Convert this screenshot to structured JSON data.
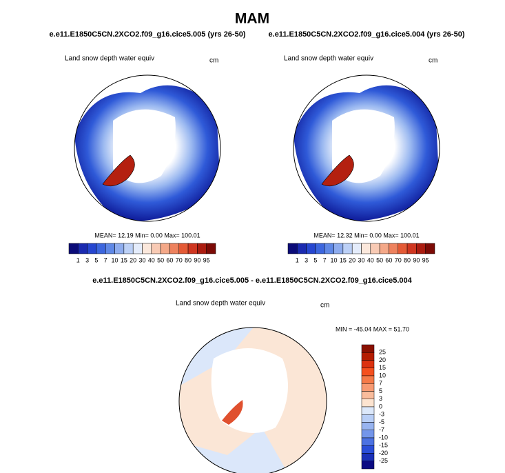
{
  "title": "MAM",
  "panels": [
    {
      "title": "e.e11.E1850C5CN.2XCO2.f09_g16.cice5.005 (yrs 26-50)",
      "subtitle": "Land snow depth water equiv",
      "units": "cm",
      "stats": "MEAN=  12.19  Min=   0.00  Max= 100.01"
    },
    {
      "title": "e.e11.E1850C5CN.2XCO2.f09_g16.cice5.004 (yrs 26-50)",
      "subtitle": "Land snow depth water equiv",
      "units": "cm",
      "stats": "MEAN=  12.32  Min=   0.00  Max= 100.01"
    }
  ],
  "colorbar": {
    "labels": [
      1,
      3,
      5,
      7,
      10,
      15,
      20,
      30,
      40,
      50,
      60,
      70,
      80,
      90,
      95
    ],
    "colors": [
      "#0b0b78",
      "#1a2ab0",
      "#2646d0",
      "#3c66de",
      "#5f88e6",
      "#8eacee",
      "#bcd0f6",
      "#e4ecfb",
      "#fbe8dc",
      "#f8cab4",
      "#f4a888",
      "#ee825e",
      "#e45a36",
      "#cf3620",
      "#ab1c10",
      "#7c0a06"
    ]
  },
  "difference": {
    "title": "e.e11.E1850C5CN.2XCO2.f09_g16.cice5.005 - e.e11.E1850C5CN.2XCO2.f09_g16.cice5.004",
    "subtitle": "Land snow depth water equiv",
    "units": "cm",
    "stats": "MIN = -45.04 MAX =  51.70",
    "colorbar": {
      "labels": [
        25,
        20,
        15,
        10,
        7,
        5,
        3,
        0,
        -3,
        -5,
        -7,
        -10,
        -15,
        -20,
        -25
      ],
      "colors": [
        "#8a1000",
        "#b41c00",
        "#dc3210",
        "#f4501e",
        "#f57a48",
        "#f79a72",
        "#f9bc9c",
        "#fde4d0",
        "#dce8fa",
        "#b8cef6",
        "#98b4f0",
        "#7496ea",
        "#4c72e2",
        "#2a4ed8",
        "#1a30b8",
        "#0b0b82"
      ]
    }
  }
}
